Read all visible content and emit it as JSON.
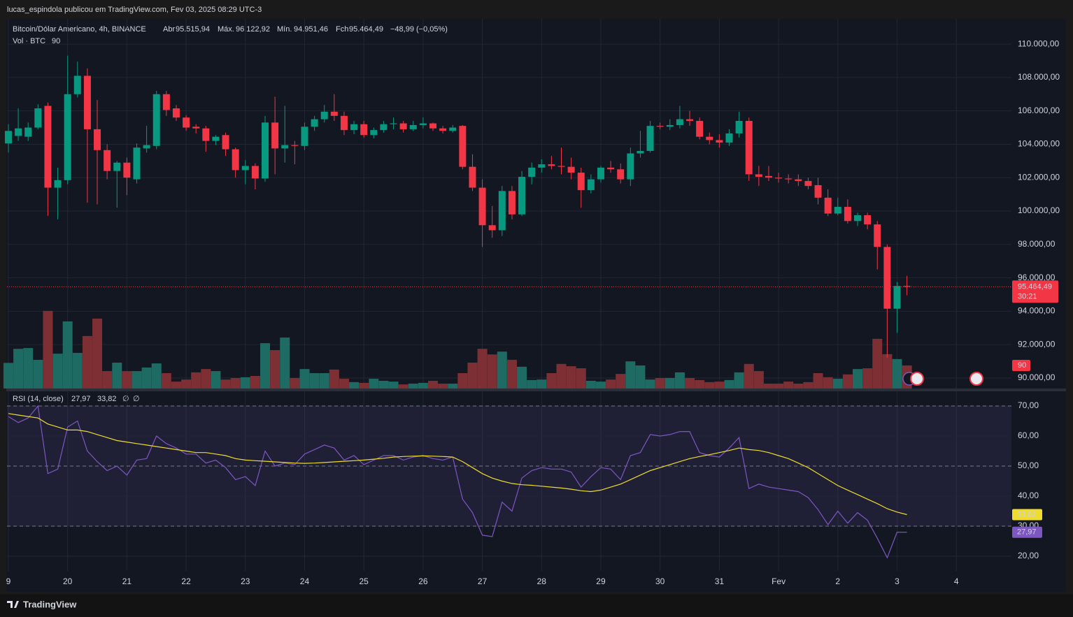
{
  "header": {
    "publisher": "lucas_espindola publicou em TradingView.com, Fev 03, 2025 08:29 UTC-3"
  },
  "footer": {
    "brand": "TradingView"
  },
  "chart_data": [
    {
      "type": "candlestick",
      "title": "Bitcoin/Dólar Americano, 4h, BINANCE",
      "ohlc_legend": [
        {
          "key": "Abr",
          "label": "95.515,94"
        },
        {
          "key": "Máx.",
          "label": "96.122,92"
        },
        {
          "key": "Mín.",
          "label": "94.951,46"
        },
        {
          "key": "Fch",
          "label": "95.464,49"
        }
      ],
      "change": "−48,99 (−0,05%)",
      "countdown": "30:21",
      "volume_title": "Vol · BTC",
      "volume_label": "90",
      "up_color": "#089981",
      "down_color": "#f23645",
      "volume_up_color": "#1e6b63",
      "volume_down_color": "#7e2f33",
      "xlim": [
        -0.14,
        101.3
      ],
      "xticks": [
        {
          "value": 0,
          "label": "9"
        },
        {
          "value": 6,
          "label": "20"
        },
        {
          "value": 12,
          "label": "21"
        },
        {
          "value": 18,
          "label": "22"
        },
        {
          "value": 24,
          "label": "23"
        },
        {
          "value": 30,
          "label": "24"
        },
        {
          "value": 36,
          "label": "25"
        },
        {
          "value": 42,
          "label": "26"
        },
        {
          "value": 48,
          "label": "27"
        },
        {
          "value": 54,
          "label": "28"
        },
        {
          "value": 60,
          "label": "29"
        },
        {
          "value": 66,
          "label": "30"
        },
        {
          "value": 72,
          "label": "31"
        },
        {
          "value": 78,
          "label": "Fev"
        },
        {
          "value": 84,
          "label": "2"
        },
        {
          "value": 90,
          "label": "3"
        },
        {
          "value": 96,
          "label": "4"
        }
      ],
      "ylim": [
        89370,
        111510
      ],
      "yticks": [
        {
          "value": 90000,
          "label": "90.000,00"
        },
        {
          "value": 92000,
          "label": "92.000,00"
        },
        {
          "value": 94000,
          "label": "94.000,00"
        },
        {
          "value": 96000,
          "label": "96.000,00"
        },
        {
          "value": 98000,
          "label": "98.000,00"
        },
        {
          "value": 100000,
          "label": "100.000,00"
        },
        {
          "value": 102000,
          "label": "102.000,00"
        },
        {
          "value": 104000,
          "label": "104.000,00"
        },
        {
          "value": 106000,
          "label": "106.000,00"
        },
        {
          "value": 108000,
          "label": "108.000,00"
        },
        {
          "value": 110000,
          "label": "110.000,00"
        }
      ],
      "volume_lim": [
        0,
        1443
      ],
      "grid": true,
      "open": [
        104050,
        104500,
        104450,
        105000,
        106300,
        101400,
        101850,
        107000,
        108100,
        104900,
        103650,
        102400,
        102900,
        101900,
        103750,
        103900,
        107000,
        106150,
        105600,
        105050,
        104950,
        104200,
        104550,
        103700,
        102450,
        102700,
        101950,
        105300,
        103750,
        103950,
        103900,
        105050,
        105500,
        105950,
        105700,
        104850,
        105200,
        104550,
        104850,
        105200,
        105250,
        104900,
        105150,
        105250,
        104950,
        104800,
        105100,
        102650,
        101400,
        99150,
        98850,
        101200,
        99800,
        102050,
        102600,
        102800,
        102700,
        102650,
        102300,
        101250,
        101900,
        102600,
        102500,
        101900,
        103450,
        103600,
        105100,
        105050,
        105150,
        105500,
        105400,
        104450,
        104250,
        104100,
        104650,
        105400,
        102200,
        102100,
        102000,
        101950,
        101900,
        101800,
        101550,
        100800,
        99850,
        100250,
        99400,
        99750,
        99200,
        97850,
        94150,
        95515.94
      ],
      "high": [
        105200,
        106150,
        105300,
        106400,
        106500,
        102600,
        109300,
        108950,
        108550,
        106650,
        104000,
        103000,
        103200,
        104050,
        105100,
        107200,
        107200,
        106350,
        105750,
        105200,
        105100,
        104550,
        104700,
        103800,
        103050,
        102850,
        105700,
        106850,
        106300,
        104200,
        105300,
        105700,
        106350,
        107000,
        105950,
        105400,
        105400,
        105000,
        105400,
        105600,
        105400,
        105400,
        105600,
        105300,
        105100,
        105150,
        105150,
        103400,
        101900,
        100300,
        101500,
        101500,
        102400,
        102900,
        103100,
        103300,
        103800,
        103200,
        102600,
        102200,
        102700,
        103000,
        102850,
        103800,
        104800,
        105400,
        105300,
        105500,
        106300,
        106000,
        105600,
        104700,
        104600,
        104900,
        105950,
        105600,
        102700,
        102700,
        102300,
        102200,
        102200,
        102000,
        102000,
        101300,
        100800,
        100700,
        99900,
        99900,
        99400,
        98000,
        95750,
        96122.92
      ],
      "low": [
        103500,
        104200,
        104200,
        104900,
        99700,
        99500,
        101600,
        106800,
        100500,
        100400,
        101900,
        100200,
        100950,
        101650,
        103500,
        103700,
        105700,
        105400,
        104800,
        104650,
        103550,
        103950,
        103300,
        102000,
        101600,
        101300,
        101750,
        102200,
        102900,
        102800,
        103650,
        104800,
        105300,
        105400,
        104550,
        104600,
        104400,
        104350,
        104700,
        104900,
        104700,
        104800,
        104950,
        104800,
        104650,
        104700,
        102500,
        101200,
        97850,
        98400,
        98500,
        99500,
        99700,
        101600,
        102300,
        102500,
        102200,
        101900,
        100200,
        101050,
        101700,
        102300,
        101650,
        101500,
        103200,
        103500,
        104900,
        104850,
        104950,
        105100,
        104300,
        104000,
        103800,
        103900,
        104400,
        101800,
        101500,
        101800,
        101700,
        101650,
        101500,
        101300,
        100400,
        99700,
        99750,
        99250,
        99100,
        98900,
        96500,
        91200,
        92700,
        94951.46
      ],
      "close": [
        104800,
        104950,
        105000,
        106150,
        101400,
        101850,
        107000,
        108100,
        104900,
        103650,
        102400,
        102900,
        102000,
        103800,
        103950,
        107000,
        106050,
        105600,
        105000,
        104950,
        104200,
        104450,
        103700,
        102450,
        102700,
        101950,
        105300,
        103750,
        103950,
        103900,
        105050,
        105500,
        105950,
        105700,
        104850,
        105200,
        104550,
        104850,
        105200,
        105250,
        104900,
        105150,
        105250,
        104950,
        104800,
        105000,
        102650,
        101400,
        99150,
        98850,
        101200,
        99800,
        102050,
        102600,
        102800,
        102700,
        102650,
        102300,
        101250,
        101900,
        102600,
        102500,
        101900,
        103450,
        103600,
        105100,
        105050,
        105150,
        105500,
        105400,
        104450,
        104250,
        104100,
        104650,
        105400,
        102200,
        102050,
        102000,
        101950,
        101900,
        101800,
        101500,
        100800,
        99850,
        100250,
        99400,
        99750,
        99200,
        97850,
        94150,
        95513.48,
        95464.49
      ],
      "volume": [
        100,
        155,
        158,
        112,
        303,
        136,
        262,
        139,
        205,
        273,
        68,
        101,
        68,
        68,
        82,
        98,
        60,
        27,
        35,
        63,
        76,
        68,
        35,
        41,
        44,
        49,
        177,
        150,
        199,
        41,
        76,
        60,
        60,
        74,
        38,
        25,
        22,
        38,
        30,
        27,
        16,
        19,
        22,
        30,
        19,
        19,
        60,
        101,
        155,
        133,
        144,
        112,
        85,
        33,
        35,
        60,
        96,
        87,
        79,
        30,
        27,
        35,
        57,
        106,
        90,
        35,
        41,
        41,
        63,
        41,
        33,
        25,
        27,
        33,
        63,
        96,
        68,
        19,
        19,
        27,
        19,
        25,
        60,
        44,
        38,
        55,
        76,
        79,
        194,
        134,
        115,
        90
      ]
    },
    {
      "type": "line",
      "title": "RSI (14, close)",
      "legend_values": [
        "27,97",
        "33,82",
        "∅",
        "∅"
      ],
      "ylim": [
        15.1,
        74.9
      ],
      "yticks": [
        {
          "value": 20,
          "label": "20,00"
        },
        {
          "value": 30,
          "label": "30,00"
        },
        {
          "value": 40,
          "label": "40,00"
        },
        {
          "value": 50,
          "label": "50,00"
        },
        {
          "value": 60,
          "label": "60,00"
        },
        {
          "value": 70,
          "label": "70,00"
        }
      ],
      "levels": [
        70,
        50,
        30
      ],
      "band_color": "#7e57c2",
      "series": [
        {
          "color": "#7e57c2",
          "values": [
            66.5,
            64.5,
            66,
            70,
            47.5,
            49,
            63,
            65,
            55,
            51.5,
            48.5,
            50,
            47,
            52,
            52.5,
            60,
            57.5,
            56,
            54,
            54,
            51,
            52,
            49.5,
            45.5,
            46.5,
            43.5,
            55,
            50,
            51,
            50.5,
            54,
            55.5,
            57,
            56,
            52,
            53.5,
            50.5,
            52,
            53.5,
            53.5,
            52,
            53,
            53.5,
            52.5,
            52,
            53,
            39,
            34.5,
            27,
            26.5,
            38,
            35,
            46,
            48.5,
            49.5,
            49,
            49,
            48,
            43,
            46.5,
            49.5,
            49,
            45.5,
            53.5,
            54.5,
            60.5,
            60,
            60.5,
            61.5,
            61.5,
            54.5,
            53.5,
            53,
            56,
            59.5,
            42.5,
            44,
            43,
            42.5,
            42,
            41.5,
            39.5,
            35.5,
            30.5,
            35,
            31,
            34.5,
            32,
            26,
            19.5,
            28,
            27.97
          ]
        },
        {
          "color": "#f0dc2c",
          "values": [
            67.5,
            67,
            66.5,
            66,
            64,
            63,
            62,
            62,
            61.5,
            60.5,
            59.5,
            58.5,
            58,
            57.5,
            57,
            56.5,
            56,
            55.5,
            55,
            54.5,
            54.5,
            54,
            53.5,
            52.5,
            52,
            51.8,
            51.6,
            51.4,
            51.2,
            51,
            50.9,
            51,
            51.2,
            51.4,
            51.6,
            51.8,
            52,
            52.3,
            52.6,
            53,
            53.2,
            53.3,
            53.4,
            53.3,
            53.2,
            53,
            51.5,
            49.5,
            47.5,
            46,
            45,
            44.2,
            43.8,
            43.6,
            43.3,
            43,
            42.7,
            42.3,
            41.8,
            41.5,
            42,
            43,
            44,
            45.5,
            47,
            48.5,
            49.5,
            50.5,
            51.5,
            52.5,
            53.2,
            53.8,
            54.5,
            55.2,
            56,
            55.5,
            55.2,
            54.5,
            53.5,
            52.5,
            51,
            49.5,
            47.5,
            45.5,
            43.5,
            42,
            40.5,
            39,
            37.5,
            35.8,
            34.7,
            33.82
          ]
        }
      ]
    }
  ]
}
